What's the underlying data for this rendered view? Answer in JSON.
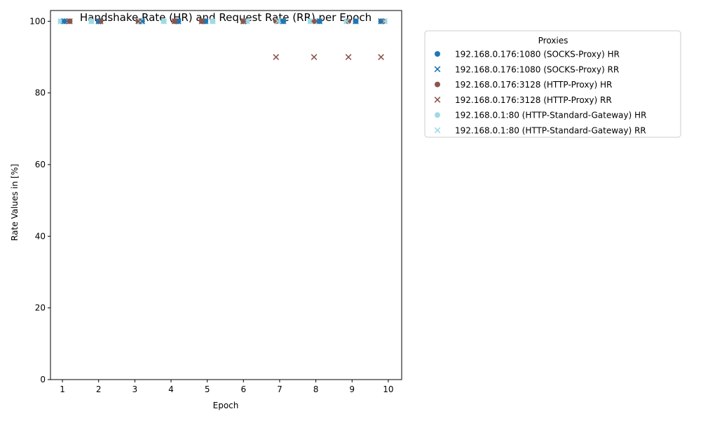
{
  "chart_data": {
    "type": "scatter",
    "title": "Handshake Rate (HR) and Request Rate (RR) per Epoch",
    "xlabel": "Epoch",
    "ylabel": "Rate Values in [%]",
    "xlim": [
      0.67,
      10.37
    ],
    "ylim": [
      0,
      103
    ],
    "xticks": [
      "1",
      "2",
      "3",
      "4",
      "5",
      "6",
      "7",
      "8",
      "9",
      "10"
    ],
    "yticks": [
      "0",
      "20",
      "40",
      "60",
      "80",
      "100"
    ],
    "grid": false,
    "legend": {
      "title": "Proxies",
      "placement": "outside-upper-right"
    },
    "series": [
      {
        "name": "192.168.0.176:1080 (SOCKS-Proxy) HR",
        "marker": "circle",
        "color": "#1f77b4",
        "x": [
          1.05,
          2.0,
          3.2,
          4.2,
          4.95,
          6.0,
          7.1,
          8.1,
          9.1,
          9.8
        ],
        "y": [
          100,
          100,
          100,
          100,
          100,
          100,
          100,
          100,
          100,
          100
        ]
      },
      {
        "name": "192.168.0.176:1080 (SOCKS-Proxy) RR",
        "marker": "x",
        "color": "#1f77b4",
        "x": [
          1.05,
          2.0,
          3.2,
          4.2,
          4.95,
          6.0,
          7.1,
          8.1,
          9.1,
          9.8
        ],
        "y": [
          100,
          100,
          100,
          100,
          100,
          100,
          100,
          100,
          100,
          100
        ]
      },
      {
        "name": "192.168.0.176:3128 (HTTP-Proxy) HR",
        "marker": "circle",
        "color": "#8c564b",
        "x": [
          1.2,
          2.05,
          3.1,
          4.1,
          4.85,
          6.0,
          6.9,
          7.95,
          8.9,
          9.85
        ],
        "y": [
          100,
          100,
          100,
          100,
          100,
          100,
          100,
          100,
          100,
          100
        ]
      },
      {
        "name": "192.168.0.176:3128 (HTTP-Proxy) RR",
        "marker": "x",
        "color": "#8c564b",
        "x": [
          1.2,
          2.05,
          3.1,
          4.1,
          4.85,
          6.0,
          6.9,
          7.95,
          8.9,
          9.8
        ],
        "y": [
          100,
          100,
          100,
          100,
          100,
          100,
          90,
          90,
          90,
          90
        ]
      },
      {
        "name": "192.168.0.1:80 (HTTP-Standard-Gateway) HR",
        "marker": "circle",
        "color": "#9edae5",
        "x": [
          0.95,
          1.8,
          3.15,
          3.8,
          5.15,
          6.1,
          6.95,
          7.85,
          8.85,
          9.9
        ],
        "y": [
          100,
          100,
          100,
          100,
          100,
          100,
          100,
          100,
          100,
          100
        ]
      },
      {
        "name": "192.168.0.1:80 (HTTP-Standard-Gateway) RR",
        "marker": "x",
        "color": "#9edae5",
        "x": [
          0.95,
          1.8,
          3.15,
          3.8,
          5.15,
          6.1,
          6.95,
          7.85,
          8.85,
          9.9
        ],
        "y": [
          100,
          100,
          100,
          100,
          100,
          100,
          100,
          100,
          100,
          100
        ]
      }
    ]
  }
}
